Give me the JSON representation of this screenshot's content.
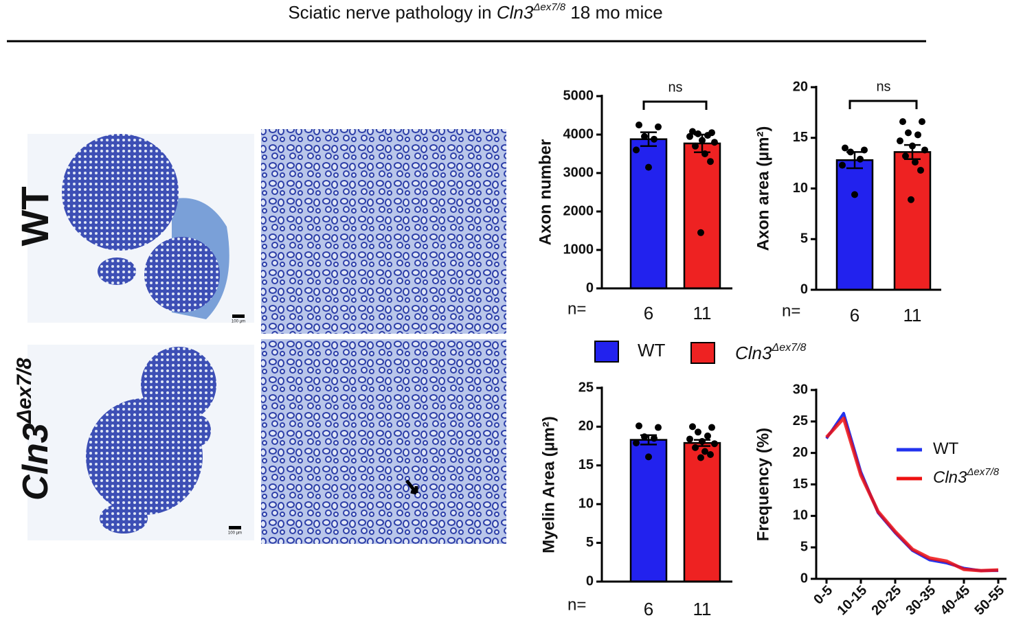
{
  "title": {
    "before": "Sciatic nerve pathology in ",
    "gene": "Cln3",
    "superscript": "Δex7/8",
    "after": " 18 mo mice"
  },
  "legend": [
    {
      "name": "WT",
      "color": "#2222ee"
    },
    {
      "name": "Cln3",
      "superscript": "Δex7/8",
      "color": "#ee2222"
    }
  ],
  "scale_bar": "100 µm",
  "chart_data": [
    {
      "type": "bar",
      "ylabel": "Axon number",
      "ylim": [
        0,
        5000
      ],
      "yticks": [
        0,
        1000,
        2000,
        3000,
        4000,
        5000
      ],
      "values": [
        3880,
        3770
      ],
      "errors": [
        180,
        230
      ],
      "points": [
        [
          4250,
          4200,
          3950,
          3880,
          3600,
          3150
        ],
        [
          4080,
          4050,
          4020,
          3980,
          3950,
          3850,
          3800,
          3700,
          3500,
          3300,
          1450
        ]
      ],
      "n_label": "n=",
      "n": [
        6,
        11
      ],
      "annotation": "ns"
    },
    {
      "type": "bar",
      "ylabel": "Axon area (µm²)",
      "ylim": [
        0,
        20
      ],
      "yticks": [
        0,
        5,
        10,
        15,
        20
      ],
      "values": [
        12.8,
        13.6
      ],
      "errors": [
        0.8,
        0.7
      ],
      "points": [
        [
          14.0,
          13.8,
          13.6,
          12.9,
          12.3,
          9.4
        ],
        [
          16.6,
          16.6,
          15.5,
          15.3,
          14.7,
          14.2,
          13.8,
          13.2,
          12.6,
          11.8,
          8.9
        ]
      ],
      "n_label": "n=",
      "n": [
        6,
        11
      ],
      "annotation": "ns"
    },
    {
      "type": "bar",
      "ylabel": "Myelin Area (µm²)",
      "ylim": [
        0,
        25
      ],
      "yticks": [
        0,
        5,
        10,
        15,
        20,
        25
      ],
      "values": [
        18.3,
        17.9
      ],
      "errors": [
        0.6,
        0.4
      ],
      "points": [
        [
          20.1,
          19.9,
          18.7,
          18.5,
          17.9,
          16.1
        ],
        [
          20.0,
          19.9,
          19.3,
          18.8,
          18.4,
          18.1,
          17.8,
          17.3,
          16.8,
          16.4,
          16.0
        ]
      ],
      "n_label": "n=",
      "n": [
        6,
        11
      ]
    },
    {
      "type": "line",
      "ylabel": "Frequency (%)",
      "ylim": [
        0,
        30
      ],
      "yticks": [
        0,
        5,
        10,
        15,
        20,
        25,
        30
      ],
      "categories": [
        "0-5",
        null,
        "10-15",
        null,
        "20-25",
        null,
        "30-35",
        null,
        "40-45",
        null,
        "50-55"
      ],
      "series": [
        {
          "name": "WT",
          "color": "#2233ee",
          "values": [
            22.3,
            26.3,
            17.0,
            10.5,
            7.3,
            4.5,
            3.0,
            2.5,
            1.7,
            1.3,
            1.3
          ]
        },
        {
          "name": "Cln3",
          "superscript": "Δex7/8",
          "color": "#ee1111",
          "values": [
            22.5,
            25.5,
            16.5,
            10.7,
            7.5,
            4.7,
            3.3,
            2.8,
            1.5,
            1.3,
            1.4
          ]
        }
      ]
    }
  ]
}
